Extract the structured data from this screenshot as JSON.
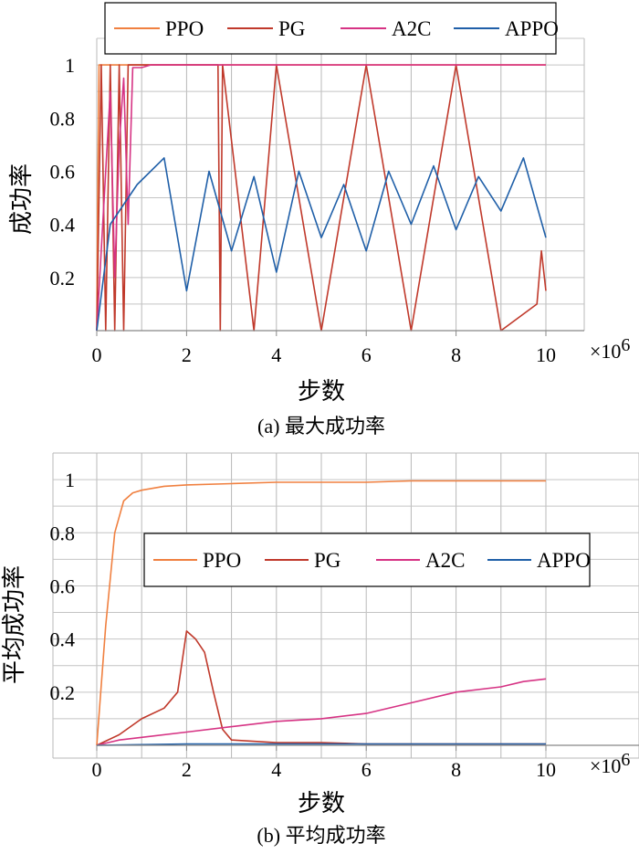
{
  "figure": {
    "caption_a": "(a) 最大成功率",
    "caption_b": "(b) 平均成功率"
  },
  "chart_data": [
    {
      "type": "line",
      "ylabel": "成功率",
      "xlabel": "步数",
      "x_multiplier": "×10",
      "x_multiplier_exp": "6",
      "xlim": [
        0,
        10
      ],
      "ylim": [
        0,
        1.1
      ],
      "x_ticks": [
        "0",
        "2",
        "4",
        "6",
        "8",
        "10"
      ],
      "y_ticks": [
        "0.2",
        "0.4",
        "0.6",
        "0.8",
        "1"
      ],
      "grid": true,
      "legend_position": "top",
      "series": [
        {
          "name": "PPO",
          "color": "#f08040",
          "x": [
            0,
            0.02,
            0.05,
            0.08,
            10
          ],
          "y": [
            0,
            0.5,
            1,
            1,
            1
          ]
        },
        {
          "name": "PG",
          "color": "#c0392b",
          "x": [
            0,
            0.1,
            0.2,
            0.3,
            0.4,
            0.5,
            0.6,
            0.7,
            2.7,
            2.75,
            2.8,
            3.5,
            4,
            5,
            6,
            7,
            8,
            9,
            9.8,
            9.9,
            10
          ],
          "y": [
            0,
            1,
            0,
            1,
            0,
            1,
            0,
            1,
            1,
            0,
            1,
            0,
            1,
            0,
            1,
            0,
            1,
            0,
            0.1,
            0.3,
            0.15
          ]
        },
        {
          "name": "A2C",
          "color": "#d63384",
          "x": [
            0,
            0.1,
            0.2,
            0.3,
            0.4,
            0.5,
            0.6,
            0.7,
            0.8,
            1.0,
            1.2,
            1.5,
            1.8,
            2.0,
            10
          ],
          "y": [
            0,
            0.3,
            0.6,
            0.9,
            0.2,
            0.7,
            0.95,
            0.4,
            0.99,
            0.99,
            1,
            1,
            1,
            1,
            1
          ]
        },
        {
          "name": "APPO",
          "color": "#1f5fa8",
          "x": [
            0,
            0.3,
            0.9,
            1.5,
            2.0,
            2.5,
            3.0,
            3.5,
            4.0,
            4.5,
            5.0,
            5.5,
            6.0,
            6.5,
            7.0,
            7.5,
            8.0,
            8.5,
            9.0,
            9.5,
            10.0
          ],
          "y": [
            0,
            0.4,
            0.55,
            0.65,
            0.15,
            0.6,
            0.3,
            0.58,
            0.22,
            0.6,
            0.35,
            0.55,
            0.3,
            0.6,
            0.4,
            0.62,
            0.38,
            0.58,
            0.45,
            0.65,
            0.35
          ]
        }
      ]
    },
    {
      "type": "line",
      "ylabel": "平均成功率",
      "xlabel": "步数",
      "x_multiplier": "×10",
      "x_multiplier_exp": "6",
      "xlim": [
        0,
        10
      ],
      "ylim": [
        0,
        1.1
      ],
      "x_ticks": [
        "0",
        "2",
        "4",
        "6",
        "8",
        "10"
      ],
      "y_ticks": [
        "0.2",
        "0.4",
        "0.6",
        "0.8",
        "1"
      ],
      "grid": true,
      "legend_position": "middle",
      "series": [
        {
          "name": "PPO",
          "color": "#f08040",
          "x": [
            0,
            0.2,
            0.4,
            0.6,
            0.8,
            1.0,
            1.5,
            2.0,
            3.0,
            4.0,
            5.0,
            6.0,
            7.0,
            8.0,
            9.0,
            10.0
          ],
          "y": [
            0,
            0.45,
            0.8,
            0.92,
            0.95,
            0.96,
            0.975,
            0.98,
            0.985,
            0.99,
            0.99,
            0.99,
            0.995,
            0.995,
            0.995,
            0.995
          ]
        },
        {
          "name": "PG",
          "color": "#c0392b",
          "x": [
            0,
            0.5,
            1.0,
            1.5,
            1.8,
            2.0,
            2.2,
            2.4,
            2.6,
            2.8,
            3.0,
            4.0,
            5.0,
            6.0,
            7.0,
            8.0,
            9.0,
            10.0
          ],
          "y": [
            0,
            0.04,
            0.1,
            0.14,
            0.2,
            0.43,
            0.4,
            0.35,
            0.2,
            0.06,
            0.02,
            0.01,
            0.01,
            0.005,
            0.005,
            0.005,
            0.005,
            0.005
          ]
        },
        {
          "name": "A2C",
          "color": "#d63384",
          "x": [
            0,
            0.5,
            1.0,
            2.0,
            3.0,
            4.0,
            5.0,
            6.0,
            7.0,
            8.0,
            9.0,
            9.5,
            10.0
          ],
          "y": [
            0,
            0.02,
            0.03,
            0.05,
            0.07,
            0.09,
            0.1,
            0.12,
            0.16,
            0.2,
            0.22,
            0.24,
            0.25
          ]
        },
        {
          "name": "APPO",
          "color": "#1f5fa8",
          "x": [
            0,
            2,
            4,
            6,
            8,
            10
          ],
          "y": [
            0,
            0.005,
            0.005,
            0.005,
            0.005,
            0.005
          ]
        }
      ]
    }
  ]
}
